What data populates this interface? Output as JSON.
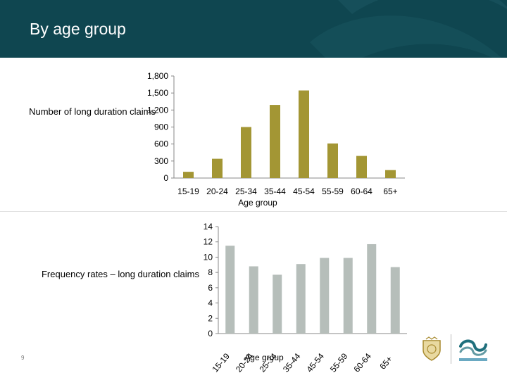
{
  "page": {
    "title": "By age group",
    "page_number": "9"
  },
  "colors": {
    "header_bg": "#0f4650",
    "bar1": "#a39634",
    "bar2": "#b6beba"
  },
  "chart_data": [
    {
      "type": "bar",
      "title": "",
      "ylabel": "Number of long duration claims",
      "xlabel": "Age group",
      "categories": [
        "15-19",
        "20-24",
        "25-34",
        "35-44",
        "45-54",
        "55-59",
        "60-64",
        "65+"
      ],
      "values": [
        110,
        340,
        900,
        1290,
        1545,
        610,
        390,
        140
      ],
      "ylim": [
        0,
        1800
      ],
      "yticks": [
        "0",
        "300",
        "600",
        "900",
        "1,200",
        "1,500",
        "1,800"
      ],
      "grid": false,
      "legend": "none"
    },
    {
      "type": "bar",
      "title": "",
      "ylabel": "Frequency rates – long duration claims",
      "xlabel": "Age group",
      "categories": [
        "15-19",
        "20-24",
        "25-34",
        "35-44",
        "45-54",
        "55-59",
        "60-64",
        "65+"
      ],
      "values": [
        11.5,
        8.8,
        7.7,
        9.1,
        9.9,
        9.9,
        11.7,
        8.7
      ],
      "ylim": [
        0,
        14
      ],
      "yticks": [
        "0",
        "2",
        "4",
        "6",
        "8",
        "10",
        "12",
        "14"
      ],
      "grid": false,
      "legend": "none"
    }
  ]
}
